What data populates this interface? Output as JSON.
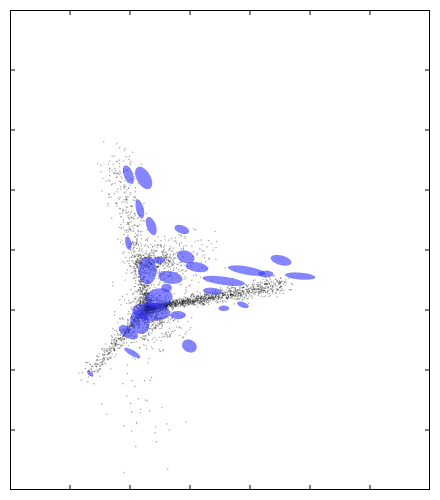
{
  "chart_data": {
    "type": "scatter",
    "title": "",
    "xlabel": "",
    "ylabel": "",
    "grid": false,
    "legend": "none",
    "axes": {
      "x_tick_labels_shown": false,
      "y_tick_labels_shown": false,
      "x_tick_count": 7,
      "y_tick_count": 7
    },
    "colors": {
      "points": "#000000",
      "ellipses": "#3333ff",
      "frame": "#000000",
      "background": "#ffffff"
    },
    "point_cloud": {
      "description_free": true,
      "arms": [
        {
          "name_free": true,
          "from": [
            0.3,
            -0.35
          ],
          "to": [
            -0.1,
            1.85
          ],
          "count": 600,
          "spread": 0.09
        },
        {
          "name_free": true,
          "from": [
            0.3,
            -0.35
          ],
          "to": [
            2.1,
            0.0
          ],
          "count": 1300,
          "spread": 0.05
        },
        {
          "name_free": true,
          "from": [
            0.3,
            -0.35
          ],
          "to": [
            -0.45,
            -1.3
          ],
          "count": 450,
          "spread": 0.05
        },
        {
          "name_free": true,
          "from": [
            0.3,
            -0.35
          ],
          "to": [
            0.35,
            -0.55
          ],
          "count": 800,
          "spread": 0.2
        },
        {
          "name_free": true,
          "from": [
            0.3,
            0.3
          ],
          "to": [
            0.9,
            0.35
          ],
          "count": 500,
          "spread": 0.22
        },
        {
          "name_free": true,
          "from": [
            0.25,
            -0.6
          ],
          "to": [
            0.2,
            -2.3
          ],
          "count": 60,
          "spread": 0.25
        }
      ]
    },
    "ellipses": [
      {
        "cx": 0.05,
        "cy": 1.6,
        "rx": 0.06,
        "ry": 0.14,
        "angle": 20
      },
      {
        "cx": 0.25,
        "cy": 1.55,
        "rx": 0.09,
        "ry": 0.18,
        "angle": 30
      },
      {
        "cx": 0.2,
        "cy": 1.1,
        "rx": 0.05,
        "ry": 0.14,
        "angle": 15
      },
      {
        "cx": 0.35,
        "cy": 0.85,
        "rx": 0.06,
        "ry": 0.14,
        "angle": 20
      },
      {
        "cx": 0.05,
        "cy": 0.6,
        "rx": 0.04,
        "ry": 0.1,
        "angle": 10
      },
      {
        "cx": 0.75,
        "cy": 0.8,
        "rx": 0.1,
        "ry": 0.06,
        "angle": -20
      },
      {
        "cx": 0.3,
        "cy": 0.2,
        "rx": 0.12,
        "ry": 0.2,
        "angle": 0
      },
      {
        "cx": 0.8,
        "cy": 0.4,
        "rx": 0.12,
        "ry": 0.09,
        "angle": -20
      },
      {
        "cx": 0.95,
        "cy": 0.25,
        "rx": 0.15,
        "ry": 0.07,
        "angle": -10
      },
      {
        "cx": 0.6,
        "cy": 0.1,
        "rx": 0.16,
        "ry": 0.09,
        "angle": -10
      },
      {
        "cx": 2.05,
        "cy": 0.35,
        "rx": 0.14,
        "ry": 0.07,
        "angle": -15
      },
      {
        "cx": 1.6,
        "cy": 0.2,
        "rx": 0.25,
        "ry": 0.06,
        "angle": -10
      },
      {
        "cx": 1.85,
        "cy": 0.15,
        "rx": 0.1,
        "ry": 0.05,
        "angle": 0
      },
      {
        "cx": 1.3,
        "cy": 0.05,
        "rx": 0.28,
        "ry": 0.06,
        "angle": -8
      },
      {
        "cx": 2.3,
        "cy": 0.12,
        "rx": 0.2,
        "ry": 0.05,
        "angle": -5
      },
      {
        "cx": 1.15,
        "cy": -0.1,
        "rx": 0.12,
        "ry": 0.05,
        "angle": -5
      },
      {
        "cx": 0.45,
        "cy": -0.2,
        "rx": 0.18,
        "ry": 0.14,
        "angle": 10
      },
      {
        "cx": 0.35,
        "cy": -0.4,
        "rx": 0.25,
        "ry": 0.13,
        "angle": -5
      },
      {
        "cx": 0.2,
        "cy": -0.55,
        "rx": 0.12,
        "ry": 0.18,
        "angle": 20
      },
      {
        "cx": 0.05,
        "cy": -0.7,
        "rx": 0.14,
        "ry": 0.08,
        "angle": -30
      },
      {
        "cx": 0.7,
        "cy": -0.45,
        "rx": 0.1,
        "ry": 0.06,
        "angle": 0
      },
      {
        "cx": 0.85,
        "cy": -0.9,
        "rx": 0.1,
        "ry": 0.09,
        "angle": -30
      },
      {
        "cx": 0.1,
        "cy": -1.0,
        "rx": 0.12,
        "ry": 0.04,
        "angle": -30
      },
      {
        "cx": -0.45,
        "cy": -1.3,
        "rx": 0.05,
        "ry": 0.03,
        "angle": -40
      },
      {
        "cx": 1.55,
        "cy": -0.3,
        "rx": 0.08,
        "ry": 0.04,
        "angle": -20
      },
      {
        "cx": 1.3,
        "cy": -0.35,
        "rx": 0.07,
        "ry": 0.04,
        "angle": 0
      },
      {
        "cx": 0.45,
        "cy": 0.35,
        "rx": 0.08,
        "ry": 0.05,
        "angle": 0
      },
      {
        "cx": 0.55,
        "cy": -0.05,
        "rx": 0.07,
        "ry": 0.06,
        "angle": 0
      }
    ],
    "xlim": [
      -1.5,
      4.0
    ],
    "ylim": [
      -3.0,
      4.0
    ]
  }
}
